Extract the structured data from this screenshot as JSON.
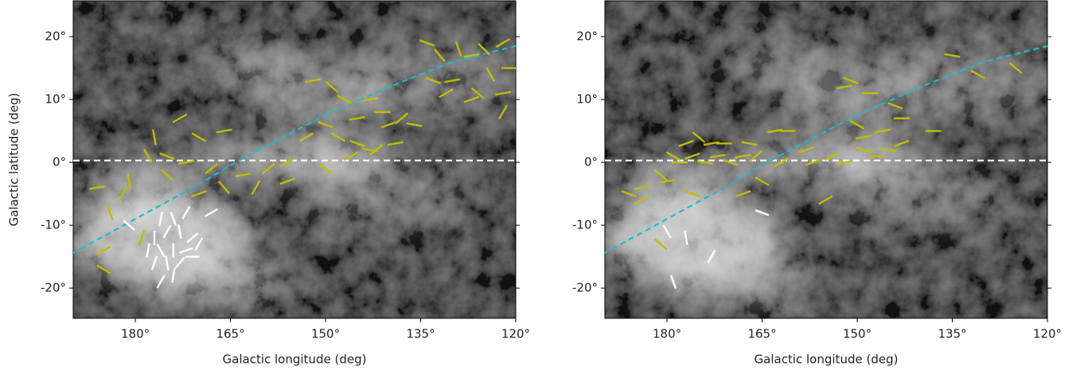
{
  "chart_data": [
    {
      "type": "polarization",
      "xlabel": "Galactic longitude (deg)",
      "ylabel": "Galactic latitude (deg)",
      "xlim": [
        189.8,
        120
      ],
      "ylim": [
        -24.8,
        25.7
      ],
      "xticks": [
        {
          "value": 180,
          "label": "180°"
        },
        {
          "value": 165,
          "label": "165°"
        },
        {
          "value": 150,
          "label": "150°"
        },
        {
          "value": 135,
          "label": "135°"
        },
        {
          "value": 120,
          "label": "120°"
        }
      ],
      "yticks": [
        {
          "value": 20,
          "label": "20°"
        },
        {
          "value": 10,
          "label": "10°"
        },
        {
          "value": 0,
          "label": "0°"
        },
        {
          "value": -10,
          "label": "-10°"
        },
        {
          "value": -20,
          "label": "-20°"
        }
      ],
      "hline": {
        "y": 0.3,
        "color": "#ffffff"
      },
      "curve": {
        "color": "#17becf",
        "x": [
          190,
          180,
          170,
          165,
          160,
          150,
          140,
          130,
          120
        ],
        "y": [
          -14.5,
          -9,
          -3.5,
          -0.5,
          2.3,
          7.5,
          12,
          16,
          18.5
        ]
      },
      "series": [
        {
          "color": "#bfbf00",
          "x": [
            134,
            132,
            129,
            127,
            125,
            122,
            121,
            124,
            130,
            133,
            131,
            127,
            122,
            122,
            126,
            152,
            149,
            147,
            143,
            141,
            138,
            136,
            140,
            145,
            150,
            153,
            148,
            145,
            142,
            139,
            146,
            143,
            150,
            156,
            159,
            156,
            161,
            163,
            166,
            170,
            173,
            177,
            178,
            175,
            172,
            175,
            181,
            182,
            186,
            184,
            185,
            185,
            170,
            166,
            168,
            179
          ],
          "y": [
            19,
            17,
            18,
            17,
            18,
            19,
            15,
            14,
            13,
            13,
            11,
            10,
            11,
            8,
            11,
            13,
            12,
            10,
            10,
            8,
            7,
            6,
            6,
            7,
            6,
            4,
            4,
            3,
            2,
            3,
            1,
            2,
            -1,
            0,
            -1,
            -3,
            -4,
            -2,
            5,
            4,
            7,
            4,
            1,
            1,
            0,
            -2,
            -3,
            -5,
            -4,
            -8,
            -14,
            -17,
            -5,
            -4,
            -1,
            -12
          ],
          "angle": [
            -20,
            -50,
            -70,
            10,
            -45,
            30,
            0,
            -60,
            10,
            -20,
            30,
            20,
            10,
            60,
            -40,
            10,
            -40,
            -30,
            10,
            0,
            40,
            -10,
            20,
            10,
            -20,
            30,
            -30,
            -20,
            40,
            10,
            30,
            -10,
            -40,
            30,
            40,
            20,
            60,
            10,
            10,
            -30,
            30,
            -80,
            -60,
            -20,
            10,
            -40,
            -80,
            60,
            10,
            -70,
            30,
            -30,
            20,
            -50,
            40,
            70
          ]
        },
        {
          "color": "#ffffff",
          "x": [
            176,
            174,
            172,
            177,
            175,
            173,
            171,
            178,
            176,
            174,
            172,
            170,
            177,
            175,
            173,
            171,
            176,
            181,
            168,
            174
          ],
          "y": [
            -9,
            -9,
            -8,
            -12,
            -11,
            -11,
            -12,
            -14,
            -14,
            -14,
            -14,
            -13,
            -16,
            -16,
            -16,
            -15,
            -19,
            -10,
            -8,
            -18
          ],
          "angle": [
            80,
            -70,
            60,
            90,
            60,
            -80,
            40,
            80,
            -60,
            90,
            20,
            60,
            70,
            -80,
            50,
            0,
            60,
            -40,
            30,
            80
          ]
        }
      ]
    },
    {
      "type": "polarization",
      "xlabel": "Galactic longitude (deg)",
      "xlim": [
        189.8,
        120
      ],
      "ylim": [
        -24.8,
        25.7
      ],
      "xticks": [
        {
          "value": 180,
          "label": "180°"
        },
        {
          "value": 165,
          "label": "165°"
        },
        {
          "value": 150,
          "label": "150°"
        },
        {
          "value": 135,
          "label": "135°"
        },
        {
          "value": 120,
          "label": "120°"
        }
      ],
      "yticks": [
        {
          "value": 20,
          "label": "20°"
        },
        {
          "value": 10,
          "label": "10°"
        },
        {
          "value": 0,
          "label": "0°"
        },
        {
          "value": -10,
          "label": "-10°"
        },
        {
          "value": -20,
          "label": "-20°"
        }
      ],
      "hline": {
        "y": 0.3,
        "color": "#ffffff"
      },
      "curve": {
        "color": "#17becf",
        "x": [
          190,
          180,
          170,
          165,
          160,
          150,
          140,
          130,
          120
        ],
        "y": [
          -14.5,
          -9,
          -3.5,
          -0.5,
          2.3,
          7.5,
          12,
          16,
          18.5
        ]
      },
      "series": [
        {
          "color": "#bfbf00",
          "x": [
            184,
            186,
            184,
            180,
            181,
            178,
            176,
            174,
            172,
            170,
            168,
            179,
            177,
            175,
            173,
            171,
            167,
            166,
            163,
            161,
            158,
            162,
            157,
            154,
            152,
            150,
            149,
            147,
            145,
            143,
            146,
            149,
            152,
            151,
            148,
            144,
            143,
            138,
            135,
            131,
            125,
            176,
            168,
            165,
            155,
            181
          ],
          "y": [
            -4,
            -5,
            -6,
            -3,
            -2,
            0,
            1,
            0,
            1,
            0,
            1,
            1,
            3,
            4,
            3,
            3,
            3,
            1,
            5,
            5,
            2,
            0,
            0,
            1,
            0,
            6,
            4,
            1,
            2,
            3,
            5,
            2,
            12,
            13,
            11,
            9,
            7,
            5,
            17,
            14,
            15,
            -5,
            -5,
            -3,
            -6,
            -13
          ],
          "angle": [
            10,
            -20,
            30,
            10,
            -40,
            0,
            20,
            -10,
            10,
            -20,
            10,
            -30,
            20,
            -40,
            10,
            0,
            -10,
            40,
            10,
            0,
            20,
            30,
            20,
            30,
            10,
            -30,
            10,
            0,
            -10,
            20,
            10,
            -20,
            10,
            -20,
            0,
            -20,
            0,
            0,
            -10,
            -30,
            -40,
            -20,
            20,
            -30,
            30,
            -40
          ]
        },
        {
          "color": "#ffffff",
          "x": [
            180,
            177,
            165,
            179,
            173
          ],
          "y": [
            -11,
            -12,
            -8,
            -19,
            -15
          ],
          "angle": [
            -60,
            -80,
            -20,
            -70,
            60
          ]
        }
      ]
    }
  ]
}
